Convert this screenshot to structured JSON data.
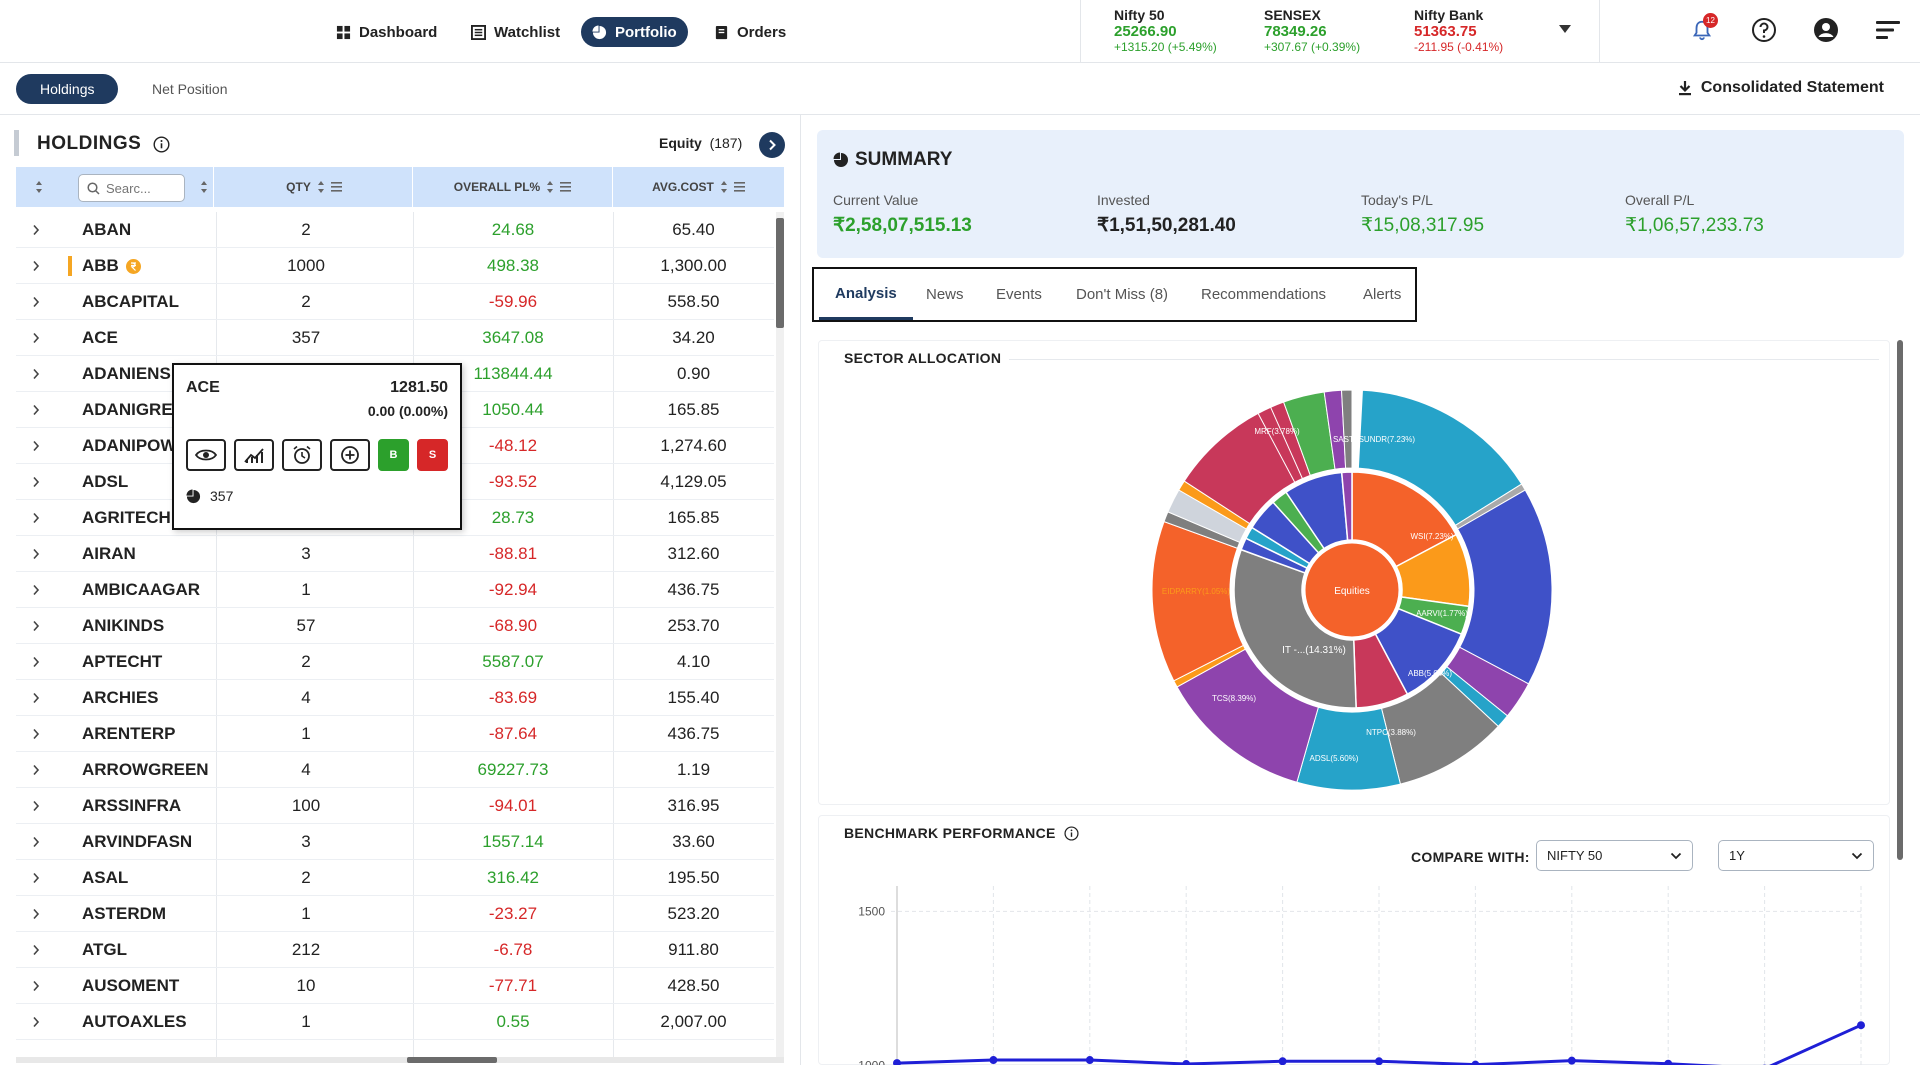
{
  "nav": {
    "items": [
      {
        "label": "Dashboard",
        "icon": "dashboard-icon",
        "active": false
      },
      {
        "label": "Watchlist",
        "icon": "watchlist-icon",
        "active": false
      },
      {
        "label": "Portfolio",
        "icon": "portfolio-icon",
        "active": true
      },
      {
        "label": "Orders",
        "icon": "orders-icon",
        "active": false
      }
    ],
    "indices": [
      {
        "name": "Nifty 50",
        "value": "25266.90",
        "change": "+1315.20 (+5.49%)",
        "direction": "up"
      },
      {
        "name": "SENSEX",
        "value": "78349.26",
        "change": "+307.67 (+0.39%)",
        "direction": "up"
      },
      {
        "name": "Nifty Bank",
        "value": "51363.75",
        "change": "-211.95 (-0.41%)",
        "direction": "down"
      }
    ],
    "notification_count": "12"
  },
  "subnav": {
    "tabs": [
      {
        "label": "Holdings",
        "active": true
      },
      {
        "label": "Net Position",
        "active": false
      }
    ],
    "consolidated_label": "Consolidated Statement"
  },
  "holdings": {
    "title": "HOLDINGS",
    "equity_label": "Equity",
    "equity_count": "(187)",
    "columns": {
      "search_placeholder": "Searc...",
      "qty": "QTY",
      "pl": "OVERALL PL%",
      "avg": "AVG.COST"
    },
    "rows": [
      {
        "symbol": "ABAN",
        "qty": "2",
        "pl": "24.68",
        "avg": "65.40",
        "dir": "up"
      },
      {
        "symbol": "ABB",
        "qty": "1000",
        "pl": "498.38",
        "avg": "1,300.00",
        "dir": "up",
        "marker": true
      },
      {
        "symbol": "ABCAPITAL",
        "qty": "2",
        "pl": "-59.96",
        "avg": "558.50",
        "dir": "down"
      },
      {
        "symbol": "ACE",
        "qty": "357",
        "pl": "3647.08",
        "avg": "34.20",
        "dir": "up"
      },
      {
        "symbol": "ADANIENS",
        "qty": "",
        "pl": "113844.44",
        "avg": "0.90",
        "dir": "up"
      },
      {
        "symbol": "ADANIGRE",
        "qty": "",
        "pl": "1050.44",
        "avg": "165.85",
        "dir": "up"
      },
      {
        "symbol": "ADANIPOW",
        "qty": "",
        "pl": "-48.12",
        "avg": "1,274.60",
        "dir": "down"
      },
      {
        "symbol": "ADSL",
        "qty": "",
        "pl": "-93.52",
        "avg": "4,129.05",
        "dir": "down"
      },
      {
        "symbol": "AGRITECH",
        "qty": "",
        "pl": "28.73",
        "avg": "165.85",
        "dir": "up"
      },
      {
        "symbol": "AIRAN",
        "qty": "3",
        "pl": "-88.81",
        "avg": "312.60",
        "dir": "down"
      },
      {
        "symbol": "AMBICAAGAR",
        "qty": "1",
        "pl": "-92.94",
        "avg": "436.75",
        "dir": "down"
      },
      {
        "symbol": "ANIKINDS",
        "qty": "57",
        "pl": "-68.90",
        "avg": "253.70",
        "dir": "down"
      },
      {
        "symbol": "APTECHT",
        "qty": "2",
        "pl": "5587.07",
        "avg": "4.10",
        "dir": "up"
      },
      {
        "symbol": "ARCHIES",
        "qty": "4",
        "pl": "-83.69",
        "avg": "155.40",
        "dir": "down"
      },
      {
        "symbol": "ARENTERP",
        "qty": "1",
        "pl": "-87.64",
        "avg": "436.75",
        "dir": "down"
      },
      {
        "symbol": "ARROWGREEN",
        "qty": "4",
        "pl": "69227.73",
        "avg": "1.19",
        "dir": "up"
      },
      {
        "symbol": "ARSSINFRA",
        "qty": "100",
        "pl": "-94.01",
        "avg": "316.95",
        "dir": "down"
      },
      {
        "symbol": "ARVINDFASN",
        "qty": "3",
        "pl": "1557.14",
        "avg": "33.60",
        "dir": "up"
      },
      {
        "symbol": "ASAL",
        "qty": "2",
        "pl": "316.42",
        "avg": "195.50",
        "dir": "up"
      },
      {
        "symbol": "ASTERDM",
        "qty": "1",
        "pl": "-23.27",
        "avg": "523.20",
        "dir": "down"
      },
      {
        "symbol": "ATGL",
        "qty": "212",
        "pl": "-6.78",
        "avg": "911.80",
        "dir": "down"
      },
      {
        "symbol": "AUSOMENT",
        "qty": "10",
        "pl": "-77.71",
        "avg": "428.50",
        "dir": "down"
      },
      {
        "symbol": "AUTOAXLES",
        "qty": "1",
        "pl": "0.55",
        "avg": "2,007.00",
        "dir": "up"
      }
    ],
    "popup": {
      "symbol": "ACE",
      "price": "1281.50",
      "change": "0.00 (0.00%)",
      "buy_label": "B",
      "sell_label": "S",
      "qty": "357",
      "actions": [
        "eye-icon",
        "chart-icon",
        "alarm-icon",
        "add-circle-icon"
      ]
    }
  },
  "summary": {
    "title": "SUMMARY",
    "items": [
      {
        "label": "Current Value",
        "value": "₹2,58,07,515.13",
        "dir": "up"
      },
      {
        "label": "Invested",
        "value": "₹1,51,50,281.40",
        "dir": "neutral"
      },
      {
        "label": "Today's P/L",
        "value": "₹15,08,317.95",
        "dir": "up"
      },
      {
        "label": "Overall P/L",
        "value": "₹1,06,57,233.73",
        "dir": "up"
      }
    ]
  },
  "analysis_tabs": [
    {
      "label": "Analysis",
      "active": true
    },
    {
      "label": "News",
      "active": false
    },
    {
      "label": "Events",
      "active": false
    },
    {
      "label": "Don't Miss (8)",
      "active": false
    },
    {
      "label": "Recommendations",
      "active": false
    },
    {
      "label": "Alerts",
      "active": false
    }
  ],
  "sector": {
    "title": "SECTOR ALLOCATION",
    "center_label": "Equities",
    "inner_label": "IT -...(14.31%)",
    "outer_labels": [
      "SASTASUNDR(7.23%)",
      "WSI(7.23%)",
      "AARVI(1.77%)",
      "ABB(5.04%)",
      "NTPC(3.88%)",
      "ADSL(5.60%)",
      "TCS(8.39%)",
      "EIDPARRY(1.05%)",
      "MRF(3.78%)"
    ]
  },
  "benchmark": {
    "title": "BENCHMARK PERFORMANCE",
    "compare_label": "COMPARE WITH:",
    "compare_value": "NIFTY 50",
    "period_value": "1Y"
  },
  "chart_data": {
    "type": "line",
    "title": "BENCHMARK PERFORMANCE",
    "xlabel": "",
    "ylabel": "",
    "yticks": [
      "1500",
      "1000"
    ],
    "ylim": [
      950,
      1550
    ],
    "series": [
      {
        "values": [
          1008,
          1018,
          1018,
          1005,
          1014,
          1014,
          1003,
          1016,
          1006,
          990,
          1131
        ],
        "color": "#1f1fd6"
      }
    ],
    "grid": true
  }
}
